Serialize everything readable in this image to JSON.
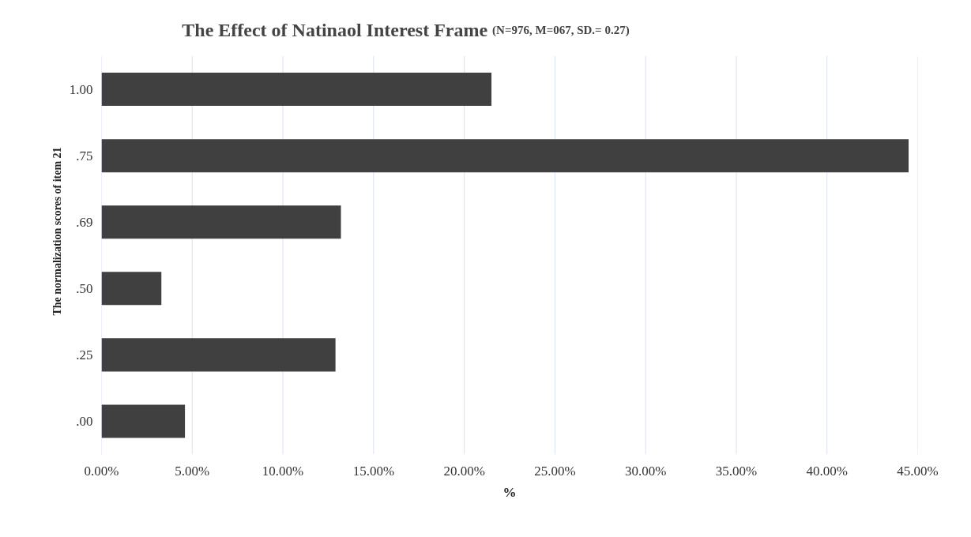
{
  "chart_data": {
    "type": "bar",
    "orientation": "horizontal",
    "title": "The Effect of Natinaol Interest Frame",
    "subtitle": "(N=976,  M=067, SD.= 0.27)",
    "xlabel": "%",
    "ylabel": "The normalization scores of item 21",
    "categories": [
      "1.00",
      ".75",
      ".69",
      ".50",
      ".25",
      ".00"
    ],
    "values": [
      21.5,
      44.5,
      13.2,
      3.3,
      12.9,
      4.6
    ],
    "color": "#404040",
    "xlim": [
      0,
      45
    ],
    "xticks": [
      {
        "value": 0,
        "label": "0.00%"
      },
      {
        "value": 5,
        "label": "5.00%"
      },
      {
        "value": 10,
        "label": "10.00%"
      },
      {
        "value": 15,
        "label": "15.00%"
      },
      {
        "value": 20,
        "label": "20.00%"
      },
      {
        "value": 25,
        "label": "25.00%"
      },
      {
        "value": 30,
        "label": "30.00%"
      },
      {
        "value": 35,
        "label": "35.00%"
      },
      {
        "value": 40,
        "label": "40.00%"
      },
      {
        "value": 45,
        "label": "45.00%"
      }
    ],
    "grid": "x"
  }
}
